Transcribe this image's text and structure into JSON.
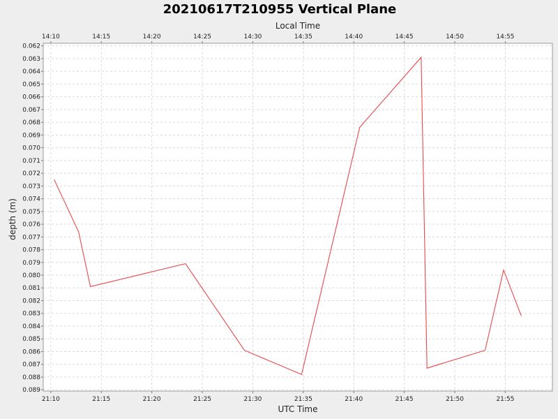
{
  "chart_data": {
    "type": "line",
    "title": "20210617T210955 Vertical Plane",
    "xlabel": "UTC Time",
    "x2label": "Local Time",
    "ylabel": "depth (m)",
    "x_ticks_utc": [
      "21:10",
      "21:15",
      "21:20",
      "21:25",
      "21:30",
      "21:35",
      "21:40",
      "21:45",
      "21:50",
      "21:55"
    ],
    "x_ticks_local": [
      "14:10",
      "14:15",
      "14:20",
      "14:25",
      "14:30",
      "14:35",
      "14:40",
      "14:45",
      "14:50",
      "14:55"
    ],
    "xlim": [
      "21:09:15",
      "21:59:40"
    ],
    "ylim": [
      0.0618,
      0.0891
    ],
    "y_inverted": true,
    "y_ticks": [
      "0.062",
      "0.063",
      "0.064",
      "0.065",
      "0.066",
      "0.067",
      "0.068",
      "0.069",
      "0.070",
      "0.071",
      "0.072",
      "0.073",
      "0.074",
      "0.075",
      "0.076",
      "0.077",
      "0.078",
      "0.079",
      "0.080",
      "0.081",
      "0.082",
      "0.083",
      "0.084",
      "0.085",
      "0.086",
      "0.087",
      "0.088",
      "0.089"
    ],
    "grid": true,
    "series": [
      {
        "color": "#e8474a",
        "points": [
          {
            "x": "21:10:20",
            "y": 0.0725
          },
          {
            "x": "21:12:45",
            "y": 0.0766
          },
          {
            "x": "21:13:55",
            "y": 0.0809
          },
          {
            "x": "21:23:20",
            "y": 0.0791
          },
          {
            "x": "21:29:10",
            "y": 0.0859
          },
          {
            "x": "21:34:50",
            "y": 0.0878
          },
          {
            "x": "21:40:35",
            "y": 0.0684
          },
          {
            "x": "21:46:40",
            "y": 0.0629
          },
          {
            "x": "21:47:15",
            "y": 0.0873
          },
          {
            "x": "21:53:00",
            "y": 0.0859
          },
          {
            "x": "21:54:50",
            "y": 0.0796
          },
          {
            "x": "21:56:35",
            "y": 0.0832
          }
        ]
      }
    ]
  }
}
